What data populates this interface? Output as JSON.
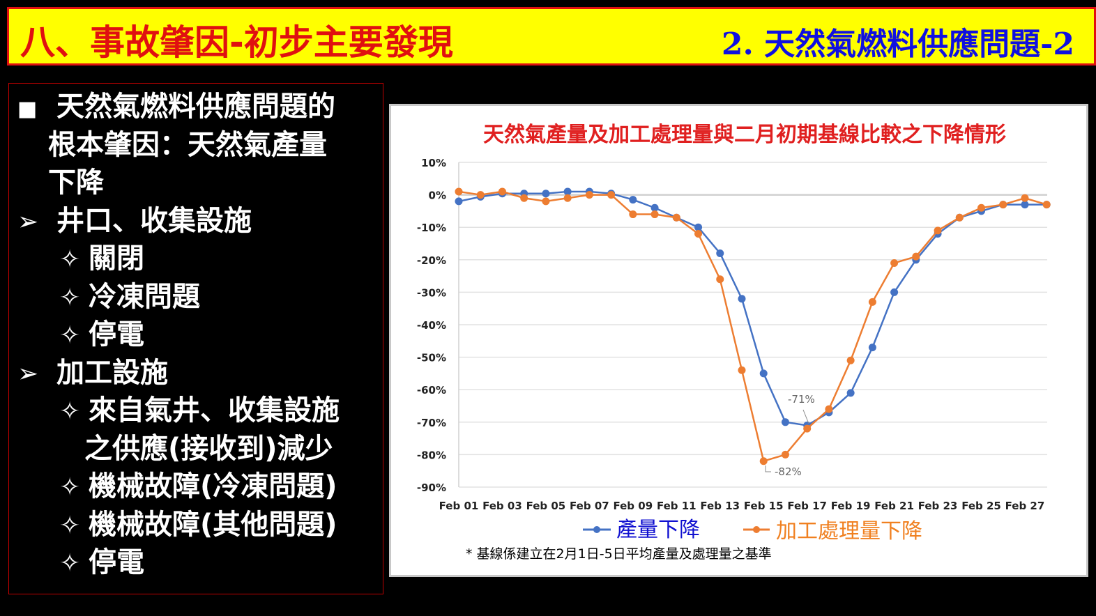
{
  "header": {
    "title": "八、事故肇因-初步主要發現",
    "subtitle": "2. 天然氣燃料供應問題-2",
    "colors": {
      "background": "#ffff00",
      "title": "#e01010",
      "subtitle": "#1010e0"
    }
  },
  "left_panel": {
    "lines": [
      {
        "bullet": "■",
        "text": "天然氣燃料供應問題的"
      },
      {
        "bullet": "",
        "text": "根本肇因：天然氣產量"
      },
      {
        "bullet": "",
        "text": "下降"
      },
      {
        "bullet": "➢",
        "text": "井口、收集設施"
      },
      {
        "bullet": "✧",
        "text": "關閉"
      },
      {
        "bullet": "✧",
        "text": "冷凍問題"
      },
      {
        "bullet": "✧",
        "text": "停電"
      },
      {
        "bullet": "➢",
        "text": "加工設施"
      },
      {
        "bullet": "✧",
        "text": "來自氣井、收集設施"
      },
      {
        "bullet": "",
        "text": "之供應(接收到)減少"
      },
      {
        "bullet": "✧",
        "text": "機械故障(冷凍問題)"
      },
      {
        "bullet": "✧",
        "text": "機械故障(其他問題)"
      },
      {
        "bullet": "✧",
        "text": "停電"
      }
    ]
  },
  "chart_data": {
    "type": "line",
    "title": "天然氣產量及加工處理量與二月初期基線比較之下降情形",
    "x": [
      "Feb 01",
      "Feb 02",
      "Feb 03",
      "Feb 04",
      "Feb 05",
      "Feb 06",
      "Feb 07",
      "Feb 08",
      "Feb 09",
      "Feb 10",
      "Feb 11",
      "Feb 12",
      "Feb 13",
      "Feb 14",
      "Feb 15",
      "Feb 16",
      "Feb 17",
      "Feb 18",
      "Feb 19",
      "Feb 20",
      "Feb 21",
      "Feb 22",
      "Feb 23",
      "Feb 24",
      "Feb 25",
      "Feb 26",
      "Feb 27",
      "Feb 28"
    ],
    "x_tick_labels": [
      "Feb 01",
      "Feb 03",
      "Feb 05",
      "Feb 07",
      "Feb 09",
      "Feb 11",
      "Feb 13",
      "Feb 15",
      "Feb 17",
      "Feb 19",
      "Feb 21",
      "Feb 23",
      "Feb 25",
      "Feb 27"
    ],
    "y_tick_labels": [
      "10%",
      "0%",
      "-10%",
      "-20%",
      "-30%",
      "-40%",
      "-50%",
      "-60%",
      "-70%",
      "-80%",
      "-90%"
    ],
    "ylim": [
      -90,
      10
    ],
    "y_unit": "%",
    "grid": true,
    "legend_position": "bottom",
    "series": [
      {
        "name": "產量下降",
        "color": "#4472c4",
        "legend_color": "#1010d0",
        "values": [
          -2,
          -0.6,
          0.4,
          0.4,
          0.4,
          1,
          1,
          0.4,
          -1.5,
          -4,
          -7,
          -10,
          -18,
          -32,
          -55,
          -70,
          -71,
          -67,
          -61,
          -47,
          -30,
          -20,
          -12,
          -7,
          -5,
          -3,
          -3,
          -3
        ]
      },
      {
        "name": "加工處理量下降",
        "color": "#ed7d31",
        "legend_color": "#f08020",
        "values": [
          1,
          0,
          1,
          -1,
          -2,
          -1,
          0,
          0,
          -6,
          -6,
          -7,
          -12,
          -26,
          -54,
          -82,
          -80,
          -72,
          -66,
          -51,
          -33,
          -21,
          -19,
          -11,
          -7,
          -4,
          -3,
          -1,
          -3
        ]
      }
    ],
    "annotations": [
      {
        "text": "-71%",
        "x": "Feb 17",
        "series": "產量下降"
      },
      {
        "text": "-82%",
        "x": "Feb 15",
        "series": "加工處理量下降"
      }
    ],
    "footnote": "* 基線係建立在2月1日-5日平均產量及處理量之基準"
  }
}
